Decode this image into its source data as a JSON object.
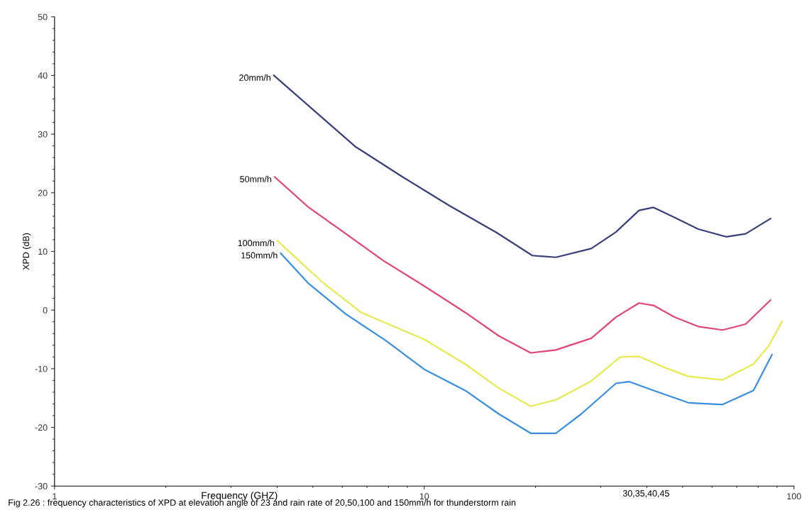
{
  "chart_data": {
    "type": "line",
    "xlabel": "Frequency (GHZ)",
    "ylabel": "XPD (dB)",
    "log": "x",
    "xlim": [
      1,
      100
    ],
    "xticks": [
      1,
      10,
      100
    ],
    "ylim": [
      -30,
      50
    ],
    "yticks": [
      -30,
      -20,
      -10,
      0,
      10,
      20,
      30,
      40,
      50
    ],
    "grid": false,
    "legend": false,
    "marker": "none",
    "line_style": "solid",
    "series": [
      {
        "name": "20mm/h",
        "color": "#3a3f7a",
        "x": [
          3.92,
          5.21,
          6.5,
          8.74,
          11.7,
          15.7,
          19.6,
          22.7,
          28.3,
          33.0,
          38.1,
          41.7,
          47.5,
          55.1,
          65.6,
          74.0,
          86.4
        ],
        "values": [
          40,
          33.2,
          27.9,
          22.7,
          17.8,
          13.2,
          9.3,
          9.0,
          10.5,
          13.3,
          17.0,
          17.5,
          15.8,
          13.8,
          12.5,
          13.0,
          15.6
        ]
      },
      {
        "name": "50mm/h",
        "color": "#e0457a",
        "x": [
          3.94,
          4.87,
          6.14,
          7.72,
          10.0,
          12.9,
          15.9,
          19.4,
          22.7,
          28.3,
          33.0,
          38.1,
          41.7,
          47.5,
          55.1,
          64.1,
          74.0,
          86.4
        ],
        "values": [
          22.7,
          17.5,
          13.0,
          8.5,
          4.1,
          -0.4,
          -4.4,
          -7.3,
          -6.8,
          -4.8,
          -1.2,
          1.2,
          0.8,
          -1.2,
          -2.8,
          -3.4,
          -2.4,
          1.7
        ]
      },
      {
        "name": "100mm/h",
        "color": "#e8e850",
        "x": [
          4.01,
          5.36,
          6.75,
          10.0,
          12.9,
          15.9,
          19.4,
          22.7,
          28.3,
          33.9,
          38.1,
          44.3,
          51.8,
          64.1,
          77.7,
          85.5,
          92.9
        ],
        "values": [
          11.8,
          4.5,
          -0.4,
          -5.0,
          -9.2,
          -13.3,
          -16.4,
          -15.3,
          -12.1,
          -8.0,
          -7.9,
          -9.7,
          -11.3,
          -11.9,
          -9.2,
          -6.1,
          -1.9
        ]
      },
      {
        "name": "150mm/h",
        "color": "#3a8ee0",
        "x": [
          4.09,
          4.87,
          6.14,
          7.87,
          10.0,
          12.9,
          15.9,
          19.4,
          22.7,
          26.6,
          33.0,
          35.8,
          41.7,
          51.8,
          64.1,
          77.7,
          87.2
        ],
        "values": [
          9.7,
          4.5,
          -0.7,
          -5.2,
          -10.1,
          -13.7,
          -17.7,
          -21.0,
          -21.0,
          -17.7,
          -12.5,
          -12.2,
          -13.7,
          -15.8,
          -16.1,
          -13.7,
          -7.6
        ]
      }
    ],
    "annotations": [
      "30,35,40,45",
      "Fig 2.26 : frequency characteristics of XPD at elevation angle of 23 and rain rate of 20,50,100 and 150mm/h for thunderstorm rain"
    ]
  }
}
